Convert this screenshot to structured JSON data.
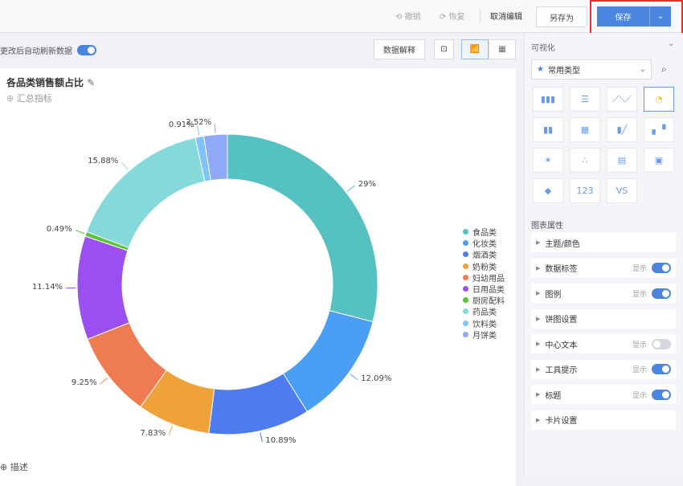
{
  "toolbar": {
    "undo": "撤销",
    "redo": "恢复",
    "cancel_edit": "取消编辑",
    "save_as": "另存为",
    "save": "保存"
  },
  "left": {
    "auto_refresh": "更改后自动刷新数据",
    "auto_refresh_on": true,
    "data_explain": "数据解释",
    "describe": "描述"
  },
  "chart_card": {
    "title": "各品类销售额占比",
    "add_metric": "汇总指标"
  },
  "chart_data": {
    "type": "pie",
    "donut": true,
    "title": "各品类销售额占比",
    "legend_position": "right",
    "categories": [
      "食品类",
      "化妆类",
      "烟酒类",
      "奶粉类",
      "妇幼用品",
      "日用品类",
      "厨房配料",
      "药品类",
      "饮料类",
      "月饼类"
    ],
    "values": [
      29,
      12.09,
      10.89,
      7.83,
      9.25,
      11.14,
      0.49,
      15.88,
      0.91,
      2.52
    ],
    "labels": [
      "29%",
      "12.09%",
      "10.89%",
      "7.83%",
      "9.25%",
      "11.14%",
      "0.49%",
      "15.88%",
      "0.91%",
      "2.52%"
    ],
    "colors": [
      "#55c1c0",
      "#4a9ff5",
      "#4e7bf0",
      "#f0a23a",
      "#ef7c50",
      "#9b4ff0",
      "#5cc43a",
      "#86d9db",
      "#7fc3fa",
      "#8ea9f5"
    ]
  },
  "right": {
    "visual_title": "可视化",
    "chart_type_select": "常用类型",
    "chart_types": [
      "bar",
      "horizontal-bar",
      "line",
      "pie",
      "grouped-bar",
      "stacked-bar",
      "bar-line",
      "waterfall",
      "radar",
      "scatter",
      "table",
      "treemap",
      "map",
      "kpi-number",
      "comparison-kpi"
    ],
    "selected_type": "pie",
    "props_title": "图表属性",
    "props": [
      {
        "label": "主题/颜色"
      },
      {
        "label": "数据标签",
        "show": "显示",
        "on": true
      },
      {
        "label": "图例",
        "show": "显示",
        "on": true
      },
      {
        "label": "饼图设置"
      },
      {
        "label": "中心文本",
        "show": "显示",
        "on": false
      },
      {
        "label": "工具提示",
        "show": "显示",
        "on": true
      },
      {
        "label": "标题",
        "show": "显示",
        "on": true
      },
      {
        "label": "卡片设置"
      }
    ]
  }
}
